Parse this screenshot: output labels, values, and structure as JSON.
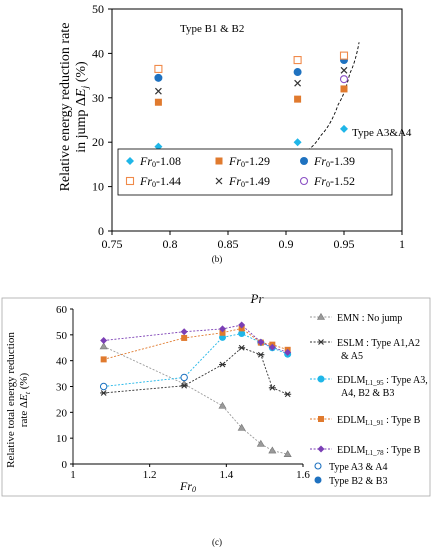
{
  "chart_data": [
    {
      "type": "scatter",
      "ylabel": "Relative energy reduction rate in jump ΔE_j (%)",
      "xlabel": "Pr",
      "xlim": [
        0.75,
        1.0
      ],
      "ylim": [
        0,
        50
      ],
      "xticks": [
        "0.75",
        "0.8",
        "0.85",
        "0.9",
        "0.95",
        "1"
      ],
      "yticks": [
        "0",
        "10",
        "20",
        "30",
        "40",
        "50"
      ],
      "grid": false,
      "annotations": [
        "Type B1 & B2",
        "Type A3&A4"
      ],
      "legend_placement": "bottom",
      "series": [
        {
          "name": "Fr0-1.08",
          "marker": "diamond",
          "color": "#1fb6e8",
          "points": [
            [
              0.79,
              19
            ],
            [
              0.91,
              20
            ],
            [
              0.95,
              23
            ]
          ]
        },
        {
          "name": "Fr0-1.29",
          "marker": "square",
          "color": "#e07a2e",
          "points": [
            [
              0.79,
              29
            ],
            [
              0.91,
              29.7
            ],
            [
              0.95,
              32
            ]
          ]
        },
        {
          "name": "Fr0-1.39",
          "marker": "circle",
          "color": "#1f72c0",
          "points": [
            [
              0.79,
              34.5
            ],
            [
              0.91,
              35.8
            ],
            [
              0.95,
              38.5
            ]
          ]
        },
        {
          "name": "Fr0-1.44",
          "marker": "square-open",
          "color": "#f08a4a",
          "points": [
            [
              0.79,
              36.5
            ],
            [
              0.91,
              38.5
            ],
            [
              0.95,
              39.5
            ]
          ]
        },
        {
          "name": "Fr0-1.49",
          "marker": "x",
          "color": "#333333",
          "points": [
            [
              0.79,
              31.5
            ],
            [
              0.91,
              33.3
            ],
            [
              0.95,
              36.2
            ]
          ]
        },
        {
          "name": "Fr0-1.52",
          "marker": "circle-open",
          "color": "#8a4fc4",
          "points": [
            [
              0.95,
              34.2
            ]
          ]
        }
      ],
      "trend_curve": [
        [
          0.915,
          17.5
        ],
        [
          0.93,
          21.5
        ],
        [
          0.945,
          28.5
        ],
        [
          0.955,
          35.5
        ],
        [
          0.963,
          42.5
        ]
      ],
      "caption": "(b)"
    },
    {
      "type": "line",
      "ylabel": "Relative total energy reduction rate ΔE_t (%)",
      "xlabel": "Fr0",
      "xlim": [
        1.0,
        1.6
      ],
      "ylim": [
        0,
        60
      ],
      "xticks": [
        "1",
        "1.2",
        "1.4",
        "1.6"
      ],
      "yticks": [
        "0",
        "10",
        "20",
        "30",
        "40",
        "50",
        "60"
      ],
      "grid": false,
      "legend_placement": "right",
      "series": [
        {
          "name": "EMN : No jump",
          "marker": "triangle",
          "color": "#9a9a9a",
          "x": [
            1.08,
            1.29,
            1.39,
            1.44,
            1.49,
            1.52,
            1.56
          ],
          "y": [
            45.5,
            31,
            22.5,
            14,
            7.8,
            5.2,
            3.8
          ]
        },
        {
          "name": "ESLM : Type A1,A2 & A5",
          "marker": "star",
          "color": "#333333",
          "x": [
            1.08,
            1.29,
            1.39,
            1.44,
            1.49,
            1.52,
            1.56
          ],
          "y": [
            27.5,
            30.3,
            38.5,
            45,
            42.3,
            29.5,
            27
          ]
        },
        {
          "name": "EDLM_L1_95 : Type A3, A4, B2 & B3",
          "marker": "circle",
          "color": "#1fb6e8",
          "x": [
            1.08,
            1.29,
            1.39,
            1.44,
            1.49,
            1.52,
            1.56
          ],
          "y": [
            30,
            33.5,
            49,
            50.5,
            47,
            45,
            42.5
          ]
        },
        {
          "name": "EDLM_L1_91 : Type B",
          "marker": "square",
          "color": "#e07a2e",
          "x": [
            1.08,
            1.29,
            1.39,
            1.44,
            1.49,
            1.52,
            1.56
          ],
          "y": [
            40.5,
            48.8,
            50.8,
            52.5,
            47,
            46.2,
            44.2
          ]
        },
        {
          "name": "EDLM_L1_78 : Type B",
          "marker": "diamond",
          "color": "#7b3fb5",
          "x": [
            1.08,
            1.29,
            1.39,
            1.44,
            1.49,
            1.52,
            1.56
          ],
          "y": [
            47.8,
            51.2,
            52.3,
            53.8,
            47.2,
            45.2,
            43.2
          ]
        }
      ],
      "marker_legend": [
        {
          "name": "Type A3 & A4",
          "marker": "circle-open",
          "color": "#1f72c0"
        },
        {
          "name": "Type B2 & B3",
          "marker": "circle",
          "color": "#1f72c0"
        }
      ],
      "caption": "(c)"
    }
  ]
}
